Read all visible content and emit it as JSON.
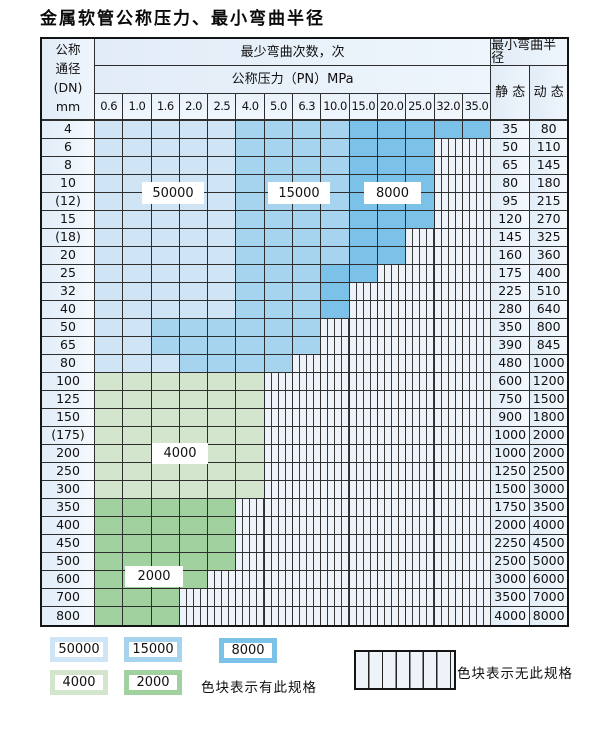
{
  "title": "金属软管公称压力、最小弯曲半径",
  "colors": {
    "blue_light": "#cfe5f5",
    "blue_mid": "#a6d3ee",
    "blue_dark": "#7cc1e8",
    "green_light": "#d3e6cd",
    "green_dark": "#a0d19e"
  },
  "header": {
    "dn_lines": [
      "公称",
      "通径",
      "(DN)",
      "mm"
    ],
    "cycles": "最少弯曲次数，次",
    "pressure": "公称压力（PN）MPa",
    "radius": "最小弯曲半径",
    "static_label": "静 态",
    "dynamic_label": "动 态",
    "pressures": [
      "0.6",
      "1.0",
      "1.6",
      "2.0",
      "2.5",
      "4.0",
      "5.0",
      "6.3",
      "10.0",
      "15.0",
      "20.0",
      "25.0",
      "32.0",
      "35.0"
    ]
  },
  "rows": [
    {
      "dn": "4",
      "family": "blue",
      "colored": 14,
      "med": 6,
      "dark": 10,
      "static": "35",
      "dynamic": "80"
    },
    {
      "dn": "6",
      "family": "blue",
      "colored": 12,
      "med": 6,
      "dark": 10,
      "static": "50",
      "dynamic": "110"
    },
    {
      "dn": "8",
      "family": "blue",
      "colored": 12,
      "med": 6,
      "dark": 10,
      "static": "65",
      "dynamic": "145"
    },
    {
      "dn": "10",
      "family": "blue",
      "colored": 12,
      "med": 6,
      "dark": 10,
      "static": "80",
      "dynamic": "180"
    },
    {
      "dn": "(12)",
      "family": "blue",
      "colored": 12,
      "med": 6,
      "dark": 10,
      "static": "95",
      "dynamic": "215"
    },
    {
      "dn": "15",
      "family": "blue",
      "colored": 12,
      "med": 6,
      "dark": 10,
      "static": "120",
      "dynamic": "270"
    },
    {
      "dn": "(18)",
      "family": "blue",
      "colored": 11,
      "med": 6,
      "dark": 10,
      "static": "145",
      "dynamic": "325"
    },
    {
      "dn": "20",
      "family": "blue",
      "colored": 11,
      "med": 6,
      "dark": 10,
      "static": "160",
      "dynamic": "360"
    },
    {
      "dn": "25",
      "family": "blue",
      "colored": 10,
      "med": 6,
      "dark": 9,
      "static": "175",
      "dynamic": "400"
    },
    {
      "dn": "32",
      "family": "blue",
      "colored": 9,
      "med": 6,
      "dark": 9,
      "static": "225",
      "dynamic": "510"
    },
    {
      "dn": "40",
      "family": "blue",
      "colored": 9,
      "med": 6,
      "dark": 9,
      "static": "280",
      "dynamic": "640"
    },
    {
      "dn": "50",
      "family": "blue",
      "colored": 8,
      "med": 3,
      "dark": 0,
      "static": "350",
      "dynamic": "800"
    },
    {
      "dn": "65",
      "family": "blue",
      "colored": 8,
      "med": 3,
      "dark": 0,
      "static": "390",
      "dynamic": "845"
    },
    {
      "dn": "80",
      "family": "blue",
      "colored": 7,
      "med": 4,
      "dark": 0,
      "static": "480",
      "dynamic": "1000"
    },
    {
      "dn": "100",
      "family": "green-light",
      "colored": 6,
      "static": "600",
      "dynamic": "1200"
    },
    {
      "dn": "125",
      "family": "green-light",
      "colored": 6,
      "static": "750",
      "dynamic": "1500"
    },
    {
      "dn": "150",
      "family": "green-light",
      "colored": 6,
      "static": "900",
      "dynamic": "1800"
    },
    {
      "dn": "(175)",
      "family": "green-light",
      "colored": 6,
      "static": "1000",
      "dynamic": "2000"
    },
    {
      "dn": "200",
      "family": "green-light",
      "colored": 6,
      "static": "1000",
      "dynamic": "2000"
    },
    {
      "dn": "250",
      "family": "green-light",
      "colored": 6,
      "static": "1250",
      "dynamic": "2500"
    },
    {
      "dn": "300",
      "family": "green-light",
      "colored": 6,
      "static": "1500",
      "dynamic": "3000"
    },
    {
      "dn": "350",
      "family": "green-dark",
      "colored": 5,
      "static": "1750",
      "dynamic": "3500"
    },
    {
      "dn": "400",
      "family": "green-dark",
      "colored": 5,
      "static": "2000",
      "dynamic": "4000"
    },
    {
      "dn": "450",
      "family": "green-dark",
      "colored": 5,
      "static": "2250",
      "dynamic": "4500"
    },
    {
      "dn": "500",
      "family": "green-dark",
      "colored": 5,
      "static": "2500",
      "dynamic": "5000"
    },
    {
      "dn": "600",
      "family": "green-dark",
      "colored": 4,
      "static": "3000",
      "dynamic": "6000"
    },
    {
      "dn": "700",
      "family": "green-dark",
      "colored": 3,
      "static": "3500",
      "dynamic": "7000"
    },
    {
      "dn": "800",
      "family": "green-dark",
      "colored": 3,
      "static": "4000",
      "dynamic": "8000"
    }
  ],
  "overlays": [
    "50000",
    "15000",
    "8000",
    "4000",
    "2000"
  ],
  "legend": {
    "items": [
      {
        "label": "50000",
        "color": "blue_light"
      },
      {
        "label": "15000",
        "color": "blue_mid"
      },
      {
        "label": "8000",
        "color": "blue_dark"
      },
      {
        "label": "4000",
        "color": "green_light"
      },
      {
        "label": "2000",
        "color": "green_dark"
      }
    ],
    "has_text": "色块表示有此规格",
    "none_text": "色块表示无此规格"
  }
}
